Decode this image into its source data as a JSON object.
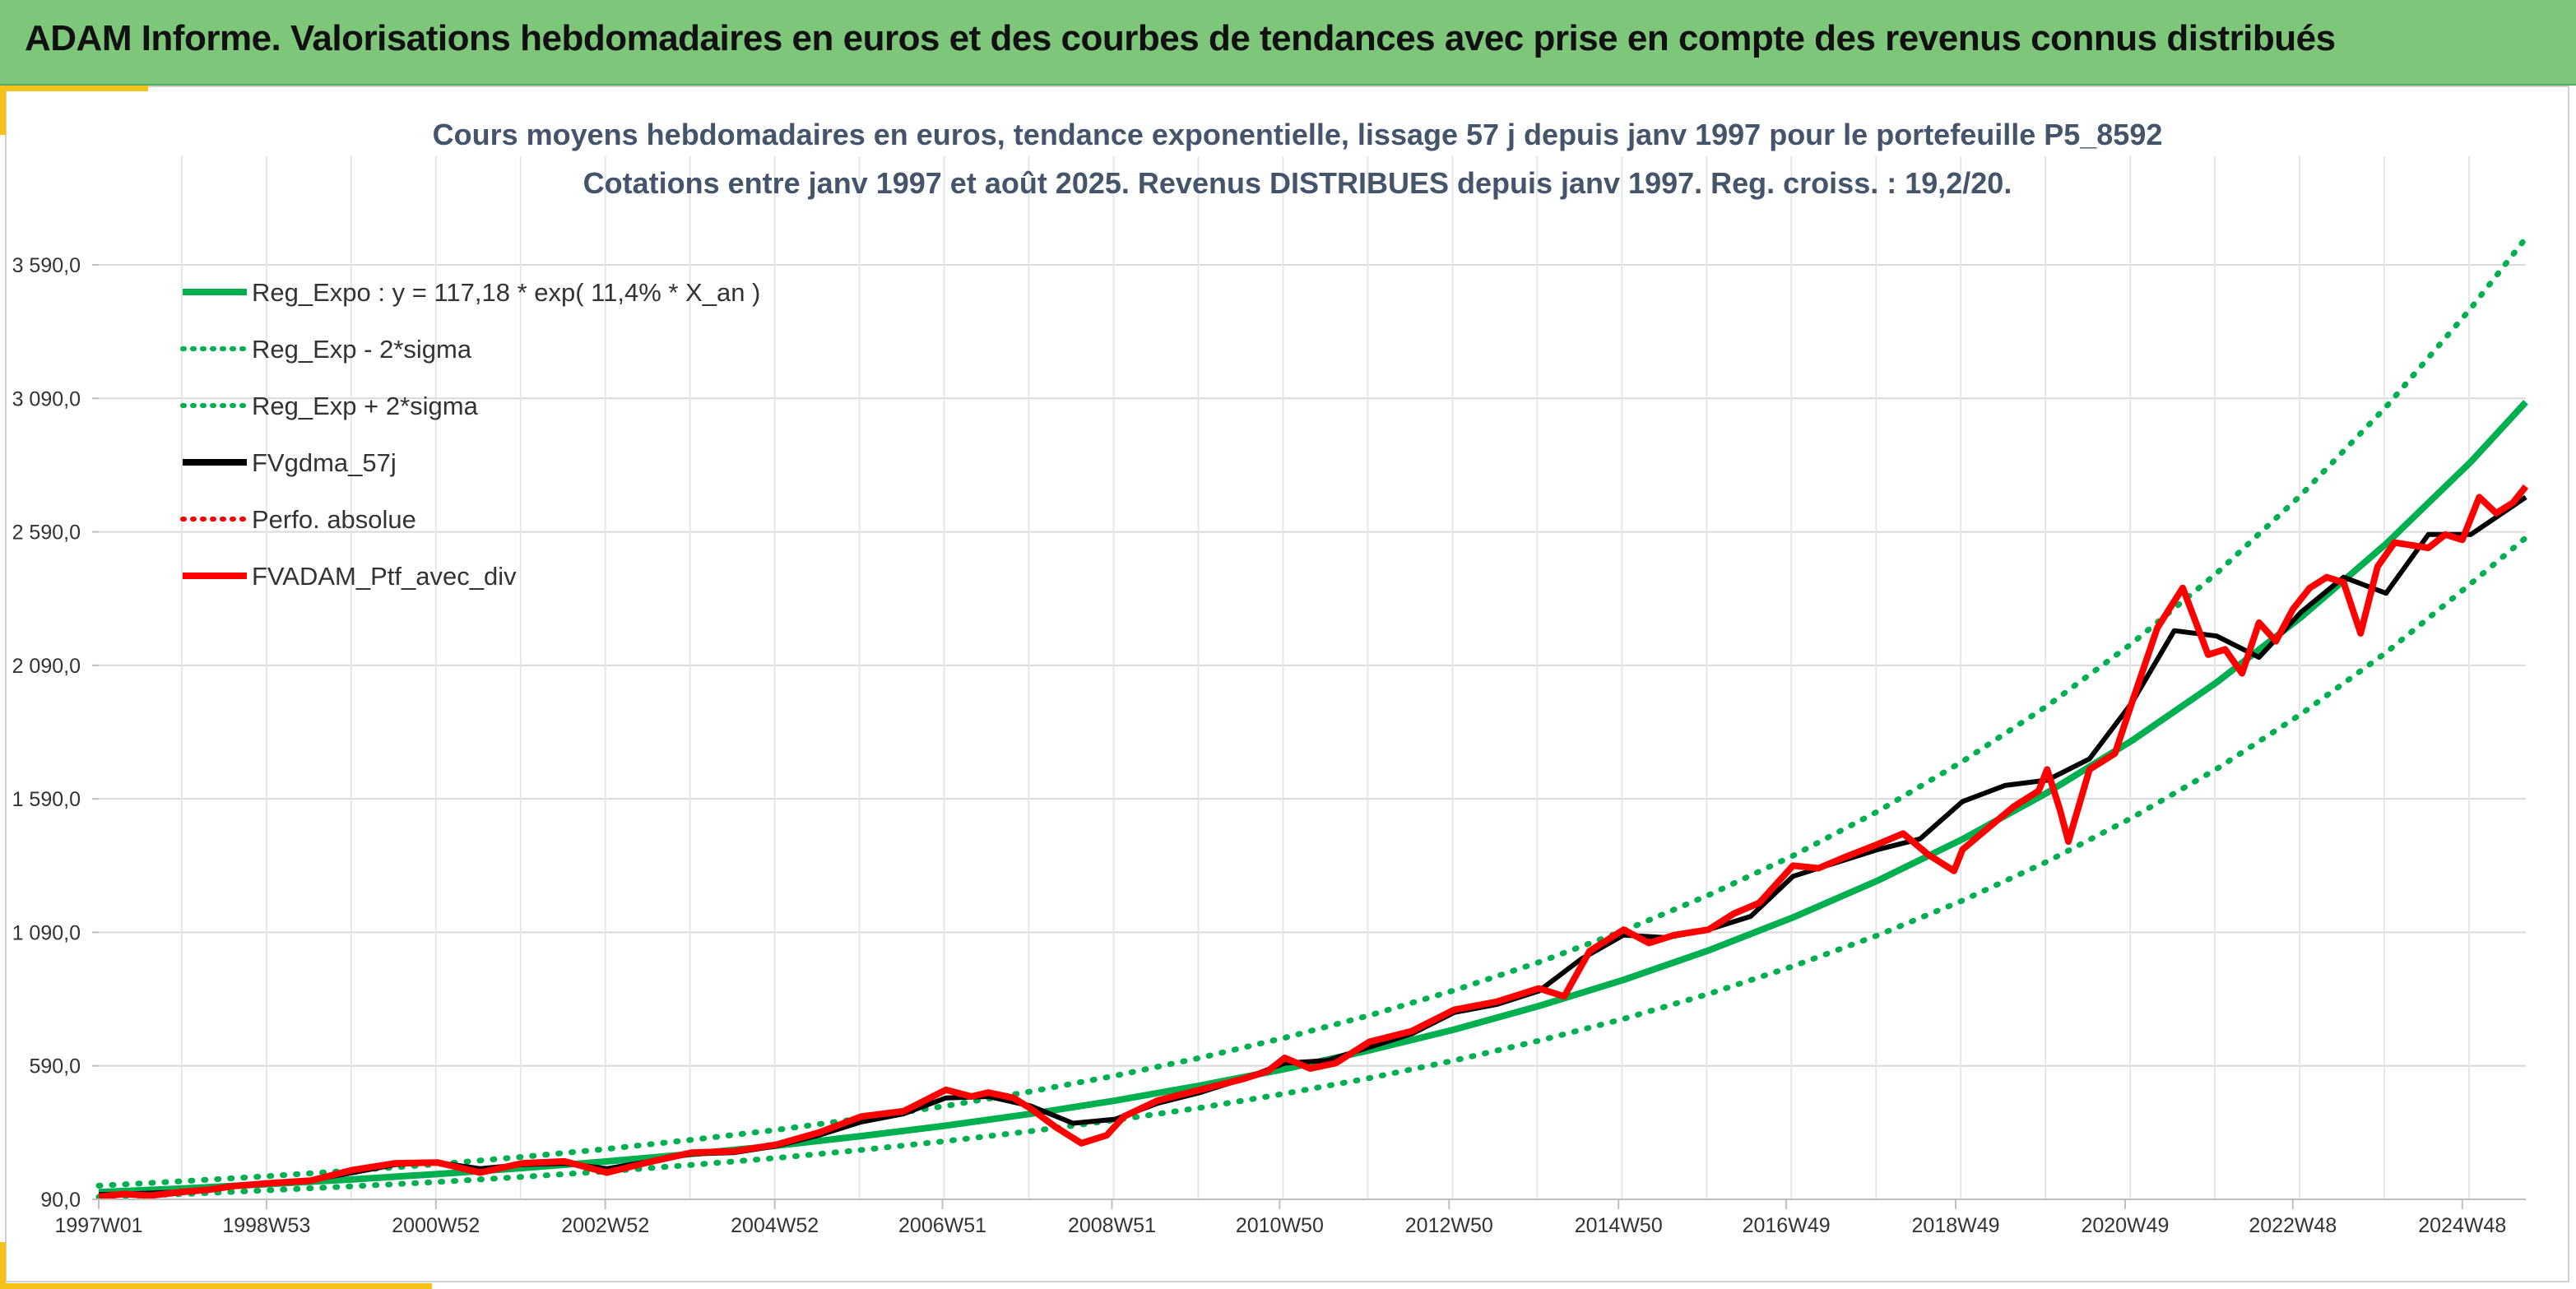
{
  "header": {
    "title": "ADAM Informe. Valorisations hebdomadaires en euros et des courbes de tendances avec prise en compte des revenus connus distribués"
  },
  "colors": {
    "banner": "#7dc67a",
    "accent": "#f6c21a",
    "trend": "#00b050",
    "smoothed": "#000000",
    "portfolio": "#ff0000",
    "grid": "#d9d9d9"
  },
  "chart_data": {
    "type": "line",
    "title": "Cours moyens hebdomadaires en euros, tendance exponentielle, lissage 57 j depuis janv 1997 pour le portefeuille P5_8592",
    "subtitle": "Cotations entre janv 1997 et août 2025. Revenus DISTRIBUES depuis janv 1997. Reg. croiss. : 19,2/20.",
    "xlabel": "",
    "ylabel": "",
    "x_range": [
      1997.0,
      2025.65
    ],
    "ylim": [
      90,
      3800
    ],
    "y_ticks": [
      90,
      590,
      1090,
      1590,
      2090,
      2590,
      3090,
      3590
    ],
    "y_tick_labels": [
      "90,0",
      "590,0",
      "1 090,0",
      "1 590,0",
      "2 090,0",
      "2 590,0",
      "3 090,0",
      "3 590,0"
    ],
    "x_ticks": [
      {
        "x": 1997.0,
        "label": "1997W01"
      },
      {
        "x": 1998.98,
        "label": "1998W53"
      },
      {
        "x": 2000.98,
        "label": "2000W52"
      },
      {
        "x": 2002.98,
        "label": "2002W52"
      },
      {
        "x": 2004.98,
        "label": "2004W52"
      },
      {
        "x": 2006.96,
        "label": "2006W51"
      },
      {
        "x": 2008.96,
        "label": "2008W51"
      },
      {
        "x": 2010.94,
        "label": "2010W50"
      },
      {
        "x": 2012.94,
        "label": "2012W50"
      },
      {
        "x": 2014.94,
        "label": "2014W50"
      },
      {
        "x": 2016.92,
        "label": "2016W49"
      },
      {
        "x": 2018.92,
        "label": "2018W49"
      },
      {
        "x": 2020.92,
        "label": "2020W49"
      },
      {
        "x": 2022.9,
        "label": "2022W48"
      },
      {
        "x": 2024.9,
        "label": "2024W48"
      }
    ],
    "grid": true,
    "legend_position": "top-left",
    "legend": [
      {
        "label": "Reg_Expo : y = 117,18 * exp( 11,4% *  X_an )",
        "style": "solid-green"
      },
      {
        "label": "Reg_Exp - 2*sigma",
        "style": "dotted-green"
      },
      {
        "label": "Reg_Exp + 2*sigma",
        "style": "dotted-green"
      },
      {
        "label": "FVgdma_57j",
        "style": "solid-black"
      },
      {
        "label": "Perfo. absolue",
        "style": "dotted-red"
      },
      {
        "label": "FVADAM_Ptf_avec_div",
        "style": "solid-red"
      }
    ],
    "series": [
      {
        "name": "Reg_Expo : y = 117,18 * exp( 11,4% *  X_an )",
        "x": [
          1997.0,
          1998.0,
          1999.0,
          2000.0,
          2001.0,
          2002.0,
          2003.0,
          2004.0,
          2005.0,
          2006.0,
          2007.0,
          2008.0,
          2009.0,
          2010.0,
          2011.0,
          2012.0,
          2013.0,
          2014.0,
          2015.0,
          2016.0,
          2017.0,
          2018.0,
          2019.0,
          2020.0,
          2021.0,
          2022.0,
          2023.0,
          2024.0,
          2025.0,
          2025.65
        ],
        "values": [
          117,
          131,
          147,
          165,
          185,
          207,
          232,
          260,
          291,
          327,
          366,
          410,
          460,
          516,
          578,
          648,
          726,
          814,
          912,
          1022,
          1146,
          1284,
          1439,
          1613,
          1808,
          2026,
          2271,
          2545,
          2852,
          3076
        ]
      },
      {
        "name": "Reg_Exp - 2*sigma",
        "x": [
          1997.0,
          1998.0,
          1999.0,
          2000.0,
          2001.0,
          2002.0,
          2003.0,
          2004.0,
          2005.0,
          2006.0,
          2007.0,
          2008.0,
          2009.0,
          2010.0,
          2011.0,
          2012.0,
          2013.0,
          2014.0,
          2015.0,
          2016.0,
          2017.0,
          2018.0,
          2019.0,
          2020.0,
          2021.0,
          2022.0,
          2023.0,
          2024.0,
          2025.0,
          2025.65
        ],
        "values": [
          99,
          110,
          124,
          139,
          155,
          174,
          195,
          219,
          245,
          275,
          308,
          345,
          387,
          433,
          486,
          544,
          610,
          684,
          766,
          859,
          963,
          1079,
          1209,
          1355,
          1519,
          1702,
          1908,
          2138,
          2396,
          2568
        ]
      },
      {
        "name": "Reg_Exp + 2*sigma",
        "x": [
          1997.0,
          1998.0,
          1999.0,
          2000.0,
          2001.0,
          2002.0,
          2003.0,
          2004.0,
          2005.0,
          2006.0,
          2007.0,
          2008.0,
          2009.0,
          2010.0,
          2011.0,
          2012.0,
          2013.0,
          2014.0,
          2015.0,
          2016.0,
          2017.0,
          2018.0,
          2019.0,
          2020.0,
          2021.0,
          2022.0,
          2023.0,
          2024.0,
          2025.0,
          2025.65
        ],
        "values": [
          141,
          158,
          177,
          198,
          222,
          249,
          279,
          313,
          350,
          393,
          440,
          494,
          553,
          620,
          695,
          779,
          873,
          978,
          1096,
          1229,
          1377,
          1543,
          1730,
          1938,
          2172,
          2435,
          2729,
          3058,
          3427,
          3690
        ]
      },
      {
        "name": "FVgdma_57j",
        "x": [
          1997.0,
          1997.5,
          1998.0,
          1998.5,
          1999.0,
          1999.5,
          2000.0,
          2000.5,
          2001.0,
          2001.5,
          2002.0,
          2002.5,
          2003.0,
          2003.5,
          2004.0,
          2004.5,
          2005.0,
          2005.5,
          2006.0,
          2006.5,
          2007.0,
          2007.5,
          2008.0,
          2008.5,
          2009.0,
          2009.5,
          2010.0,
          2010.5,
          2011.0,
          2011.5,
          2012.0,
          2012.5,
          2013.0,
          2013.5,
          2014.0,
          2014.5,
          2015.0,
          2015.5,
          2016.0,
          2016.5,
          2017.0,
          2017.5,
          2018.0,
          2018.5,
          2019.0,
          2019.5,
          2020.0,
          2020.5,
          2021.0,
          2021.5,
          2022.0,
          2022.5,
          2023.0,
          2023.5,
          2024.0,
          2024.5,
          2025.0,
          2025.65
        ],
        "values": [
          108,
          112,
          118,
          135,
          148,
          162,
          190,
          220,
          228,
          205,
          220,
          225,
          205,
          232,
          260,
          265,
          290,
          330,
          380,
          410,
          470,
          475,
          440,
          375,
          390,
          450,
          490,
          540,
          600,
          610,
          660,
          710,
          790,
          820,
          870,
          990,
          1080,
          1070,
          1100,
          1150,
          1300,
          1350,
          1400,
          1440,
          1580,
          1640,
          1660,
          1740,
          1950,
          2220,
          2200,
          2120,
          2290,
          2420,
          2360,
          2580,
          2580,
          2720
        ]
      },
      {
        "name": "FVADAM_Ptf_avec_div",
        "x": [
          1997.0,
          1997.3,
          1997.6,
          1998.0,
          1998.3,
          1998.6,
          1999.0,
          1999.5,
          2000.0,
          2000.5,
          2001.0,
          2001.5,
          2002.0,
          2002.5,
          2003.0,
          2003.5,
          2004.0,
          2004.5,
          2005.0,
          2005.5,
          2006.0,
          2006.5,
          2007.0,
          2007.3,
          2007.5,
          2007.8,
          2008.0,
          2008.3,
          2008.6,
          2008.9,
          2009.1,
          2009.5,
          2010.0,
          2010.5,
          2010.8,
          2011.0,
          2011.3,
          2011.6,
          2012.0,
          2012.5,
          2013.0,
          2013.5,
          2014.0,
          2014.3,
          2014.6,
          2015.0,
          2015.3,
          2015.6,
          2016.0,
          2016.3,
          2016.6,
          2017.0,
          2017.3,
          2017.6,
          2018.0,
          2018.3,
          2018.6,
          2018.9,
          2019.0,
          2019.3,
          2019.6,
          2019.9,
          2020.0,
          2020.15,
          2020.25,
          2020.5,
          2020.8,
          2021.0,
          2021.3,
          2021.6,
          2021.9,
          2022.1,
          2022.3,
          2022.5,
          2022.7,
          2022.9,
          2023.1,
          2023.3,
          2023.5,
          2023.7,
          2023.9,
          2024.1,
          2024.3,
          2024.5,
          2024.7,
          2024.9,
          2025.1,
          2025.3,
          2025.5,
          2025.65
        ],
        "values": [
          100,
          110,
          104,
          118,
          126,
          140,
          150,
          160,
          200,
          225,
          228,
          190,
          225,
          232,
          190,
          230,
          265,
          270,
          295,
          340,
          400,
          420,
          500,
          475,
          490,
          470,
          430,
          360,
          300,
          330,
          400,
          460,
          500,
          540,
          570,
          620,
          580,
          600,
          680,
          720,
          800,
          830,
          880,
          850,
          1020,
          1100,
          1050,
          1080,
          1100,
          1160,
          1200,
          1340,
          1330,
          1370,
          1420,
          1460,
          1380,
          1320,
          1400,
          1480,
          1560,
          1620,
          1700,
          1550,
          1430,
          1700,
          1760,
          1950,
          2230,
          2380,
          2130,
          2150,
          2060,
          2250,
          2180,
          2300,
          2380,
          2420,
          2400,
          2210,
          2460,
          2550,
          2540,
          2530,
          2580,
          2560,
          2720,
          2660,
          2700,
          2760
        ]
      }
    ]
  }
}
